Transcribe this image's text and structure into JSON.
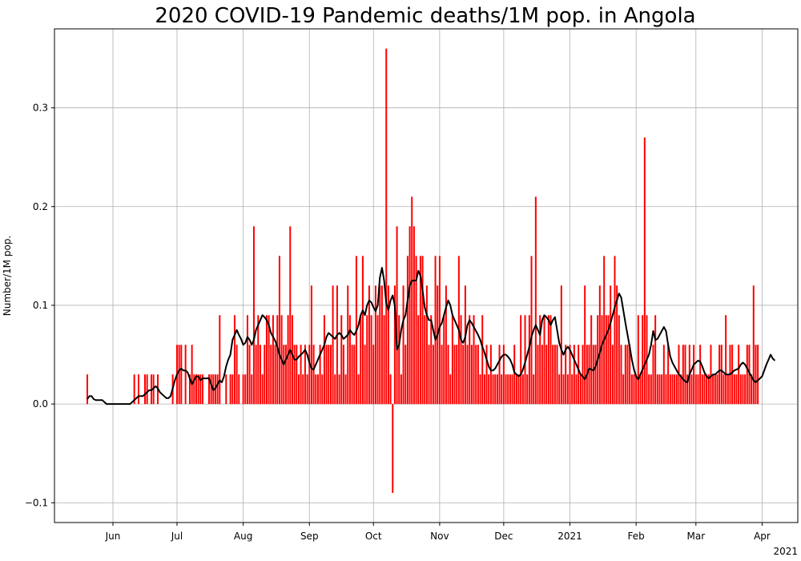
{
  "chart_data": {
    "type": "bar",
    "title": "2020 COVID-19 Pandemic deaths/1M pop. in Angola",
    "xlabel": "",
    "ylabel": "Number/1M pop.",
    "x_start": "2020-05-20",
    "ylim": [
      -0.12,
      0.38
    ],
    "y_ticks": [
      -0.1,
      0.0,
      0.1,
      0.2,
      0.3
    ],
    "y_tick_labels": [
      "−0.1",
      "0.0",
      "0.1",
      "0.2",
      "0.3"
    ],
    "x_ticks": [
      {
        "date": "2020-06-01",
        "label": "Jun"
      },
      {
        "date": "2020-07-01",
        "label": "Jul"
      },
      {
        "date": "2020-08-01",
        "label": "Aug"
      },
      {
        "date": "2020-09-01",
        "label": "Sep"
      },
      {
        "date": "2020-10-01",
        "label": "Oct"
      },
      {
        "date": "2020-11-01",
        "label": "Nov"
      },
      {
        "date": "2020-12-01",
        "label": "Dec"
      },
      {
        "date": "2021-01-01",
        "label": "2021"
      },
      {
        "date": "2021-02-01",
        "label": "Feb"
      },
      {
        "date": "2021-03-01",
        "label": "Mar"
      },
      {
        "date": "2021-04-01",
        "label": "Apr"
      }
    ],
    "offset_label": "2021",
    "grid": true,
    "bar_color": "#ff0000",
    "line_color": "#000000",
    "series": [
      {
        "kind": "bar",
        "values": [
          0.03,
          0,
          0,
          0,
          0,
          0,
          0,
          0,
          0,
          0,
          0,
          0,
          0,
          0,
          0,
          0,
          0,
          0,
          0,
          0,
          0,
          0,
          0.03,
          0,
          0.03,
          0,
          0,
          0.03,
          0.03,
          0,
          0.03,
          0.03,
          0,
          0.03,
          0,
          0,
          0,
          0,
          0,
          0,
          0.03,
          0,
          0.06,
          0.06,
          0.06,
          0,
          0.06,
          0,
          0.03,
          0.06,
          0.03,
          0.03,
          0.03,
          0.03,
          0.03,
          0,
          0,
          0.03,
          0.03,
          0.03,
          0.03,
          0.03,
          0.09,
          0,
          0,
          0.03,
          0,
          0.03,
          0.03,
          0.09,
          0.06,
          0.03,
          0,
          0.03,
          0.03,
          0.09,
          0.06,
          0.03,
          0.18,
          0.06,
          0.09,
          0.06,
          0.03,
          0.06,
          0.09,
          0.09,
          0.06,
          0.09,
          0.06,
          0.09,
          0.15,
          0.09,
          0.06,
          0.06,
          0.09,
          0.18,
          0.09,
          0.06,
          0.06,
          0.03,
          0.06,
          0.03,
          0.06,
          0.03,
          0.06,
          0.12,
          0.06,
          0.03,
          0.03,
          0.06,
          0.03,
          0.09,
          0.06,
          0.06,
          0.06,
          0.12,
          0.03,
          0.12,
          0.03,
          0.09,
          0.06,
          0.03,
          0.12,
          0.09,
          0.06,
          0.06,
          0.15,
          0.03,
          0.09,
          0.15,
          0.06,
          0.09,
          0.12,
          0.09,
          0.06,
          0.12,
          0.09,
          0.12,
          0.12,
          0.09,
          0.36,
          0.12,
          0.03,
          -0.09,
          0.12,
          0.18,
          0.09,
          0.03,
          0.12,
          0.06,
          0.15,
          0.18,
          0.21,
          0.18,
          0.15,
          0.09,
          0.15,
          0.15,
          0.09,
          0.12,
          0.06,
          0.09,
          0.06,
          0.15,
          0.12,
          0.15,
          0.06,
          0.09,
          0.12,
          0.06,
          0.03,
          0.09,
          0.06,
          0.06,
          0.15,
          0.09,
          0.06,
          0.12,
          0.06,
          0.09,
          0.06,
          0.09,
          0.06,
          0.06,
          0.03,
          0.09,
          0.03,
          0.06,
          0.03,
          0.06,
          0.03,
          0.03,
          0.03,
          0.06,
          0.03,
          0.06,
          0.03,
          0.03,
          0.03,
          0.03,
          0.06,
          0.03,
          0.03,
          0.09,
          0.03,
          0.09,
          0.03,
          0.09,
          0.15,
          0.03,
          0.21,
          0.06,
          0.09,
          0.06,
          0.09,
          0.06,
          0.09,
          0.09,
          0.06,
          0.06,
          0.06,
          0.03,
          0.12,
          0.03,
          0.06,
          0.03,
          0.06,
          0.03,
          0.06,
          0.03,
          0.06,
          0.03,
          0.06,
          0.12,
          0.06,
          0.06,
          0.09,
          0.06,
          0.06,
          0.09,
          0.12,
          0.09,
          0.15,
          0.09,
          0.09,
          0.12,
          0.06,
          0.15,
          0.12,
          0.09,
          0.06,
          0.03,
          0.06,
          0.06,
          0.06,
          0.03,
          0.03,
          0.03,
          0.09,
          0.03,
          0.09,
          0.27,
          0.09,
          0.03,
          0.03,
          0.06,
          0.09,
          0.03,
          0.03,
          0.03,
          0.06,
          0.03,
          0.06,
          0.03,
          0.03,
          0.03,
          0.03,
          0.06,
          0.03,
          0.06,
          0.06,
          0.03,
          0.06,
          0.03,
          0.06,
          0.03,
          0.03,
          0.06,
          0.03,
          0.03,
          0.03,
          0.03,
          0.06,
          0.03,
          0.03,
          0.03,
          0.06,
          0.06,
          0.03,
          0.09,
          0.03,
          0.06,
          0.06,
          0.03,
          0.03,
          0.06,
          0.03,
          0.03,
          0.03,
          0.06,
          0.06,
          0.03,
          0.12,
          0.06,
          0.06
        ]
      },
      {
        "kind": "line",
        "name": "",
        "values": [
          0.005,
          0.008,
          0.008,
          0.005,
          0.004,
          0.004,
          0.004,
          0.004,
          0.002,
          0,
          0,
          0,
          0,
          0,
          0,
          0,
          0,
          0,
          0,
          0,
          0,
          0.002,
          0.004,
          0.006,
          0.008,
          0.008,
          0.008,
          0.01,
          0.012,
          0.014,
          0.014,
          0.016,
          0.018,
          0.016,
          0.012,
          0.01,
          0.008,
          0.006,
          0.006,
          0.008,
          0.016,
          0.024,
          0.03,
          0.034,
          0.036,
          0.034,
          0.034,
          0.032,
          0.026,
          0.02,
          0.024,
          0.028,
          0.028,
          0.024,
          0.026,
          0.026,
          0.026,
          0.026,
          0.02,
          0.014,
          0.016,
          0.02,
          0.024,
          0.022,
          0.028,
          0.038,
          0.045,
          0.05,
          0.065,
          0.07,
          0.075,
          0.07,
          0.066,
          0.06,
          0.062,
          0.068,
          0.065,
          0.06,
          0.065,
          0.075,
          0.08,
          0.085,
          0.09,
          0.088,
          0.085,
          0.08,
          0.072,
          0.068,
          0.064,
          0.058,
          0.05,
          0.045,
          0.04,
          0.045,
          0.05,
          0.055,
          0.05,
          0.045,
          0.045,
          0.048,
          0.05,
          0.052,
          0.055,
          0.05,
          0.042,
          0.036,
          0.035,
          0.04,
          0.045,
          0.05,
          0.055,
          0.06,
          0.068,
          0.072,
          0.07,
          0.068,
          0.066,
          0.07,
          0.072,
          0.07,
          0.066,
          0.068,
          0.07,
          0.075,
          0.072,
          0.07,
          0.074,
          0.08,
          0.09,
          0.095,
          0.09,
          0.1,
          0.105,
          0.103,
          0.098,
          0.094,
          0.1,
          0.128,
          0.138,
          0.125,
          0.102,
          0.095,
          0.105,
          0.11,
          0.1,
          0.055,
          0.06,
          0.075,
          0.085,
          0.09,
          0.105,
          0.12,
          0.125,
          0.125,
          0.125,
          0.135,
          0.13,
          0.115,
          0.098,
          0.09,
          0.085,
          0.085,
          0.075,
          0.065,
          0.07,
          0.078,
          0.082,
          0.09,
          0.098,
          0.105,
          0.1,
          0.09,
          0.085,
          0.08,
          0.075,
          0.065,
          0.062,
          0.068,
          0.08,
          0.085,
          0.082,
          0.078,
          0.074,
          0.07,
          0.065,
          0.058,
          0.052,
          0.045,
          0.038,
          0.034,
          0.034,
          0.036,
          0.04,
          0.044,
          0.048,
          0.05,
          0.05,
          0.048,
          0.045,
          0.04,
          0.032,
          0.03,
          0.028,
          0.03,
          0.035,
          0.042,
          0.05,
          0.058,
          0.068,
          0.075,
          0.08,
          0.075,
          0.07,
          0.085,
          0.09,
          0.088,
          0.085,
          0.08,
          0.085,
          0.088,
          0.075,
          0.062,
          0.055,
          0.05,
          0.055,
          0.058,
          0.055,
          0.05,
          0.045,
          0.04,
          0.035,
          0.03,
          0.028,
          0.025,
          0.03,
          0.036,
          0.035,
          0.034,
          0.038,
          0.045,
          0.052,
          0.06,
          0.065,
          0.07,
          0.075,
          0.082,
          0.09,
          0.098,
          0.105,
          0.112,
          0.108,
          0.095,
          0.082,
          0.07,
          0.058,
          0.045,
          0.035,
          0.028,
          0.025,
          0.03,
          0.035,
          0.04,
          0.045,
          0.05,
          0.06,
          0.074,
          0.065,
          0.066,
          0.07,
          0.074,
          0.078,
          0.074,
          0.06,
          0.048,
          0.042,
          0.038,
          0.034,
          0.03,
          0.028,
          0.025,
          0.023,
          0.022,
          0.03,
          0.035,
          0.04,
          0.042,
          0.044,
          0.043,
          0.038,
          0.032,
          0.028,
          0.026,
          0.028,
          0.03,
          0.03,
          0.032,
          0.034,
          0.034,
          0.032,
          0.03,
          0.03,
          0.03,
          0.032,
          0.034,
          0.035,
          0.036,
          0.04,
          0.042,
          0.04,
          0.036,
          0.032,
          0.028,
          0.024,
          0.022,
          0.024,
          0.026,
          0.028,
          0.034,
          0.04,
          0.045,
          0.05,
          0.046,
          0.044
        ]
      }
    ]
  }
}
